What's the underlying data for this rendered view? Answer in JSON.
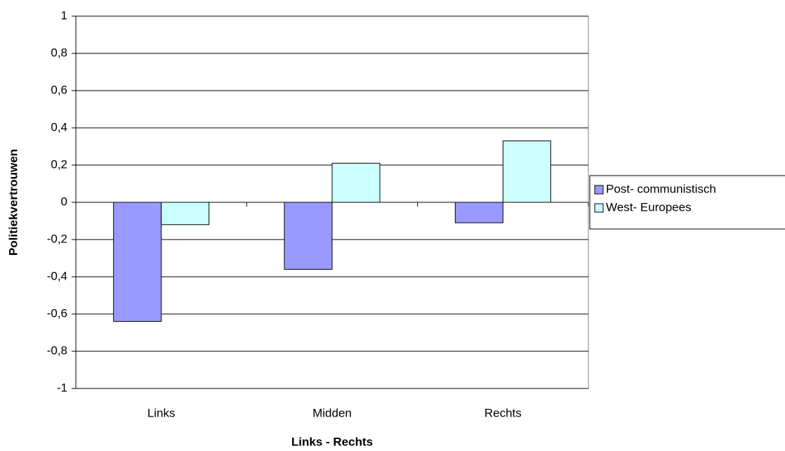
{
  "chart_data": {
    "type": "bar",
    "x_label": "Links - Rechts",
    "y_label": "Politiekvertrouwen",
    "categories": [
      "Links",
      "Midden",
      "Rechts"
    ],
    "series": [
      {
        "name": "Post- communistisch",
        "color": "#9999ff",
        "values": [
          -0.64,
          -0.36,
          -0.11
        ]
      },
      {
        "name": "West- Europees",
        "color": "#ccffff",
        "values": [
          -0.12,
          0.21,
          0.33
        ]
      }
    ],
    "ylim": [
      -1,
      1
    ],
    "yticks": [
      -1,
      {
        "value": -0.8,
        "label": "-0,8"
      },
      {
        "value": -0.6,
        "label": "-0,6"
      },
      {
        "value": -0.4,
        "label": "-0,4"
      },
      {
        "value": -0.2,
        "label": "-0,2"
      },
      0,
      {
        "value": 0.2,
        "label": "0,2"
      },
      {
        "value": 0.4,
        "label": "0,4"
      },
      {
        "value": 0.6,
        "label": "0,6"
      },
      {
        "value": 0.8,
        "label": "0,8"
      },
      1
    ],
    "grid": true,
    "legend": "right"
  }
}
